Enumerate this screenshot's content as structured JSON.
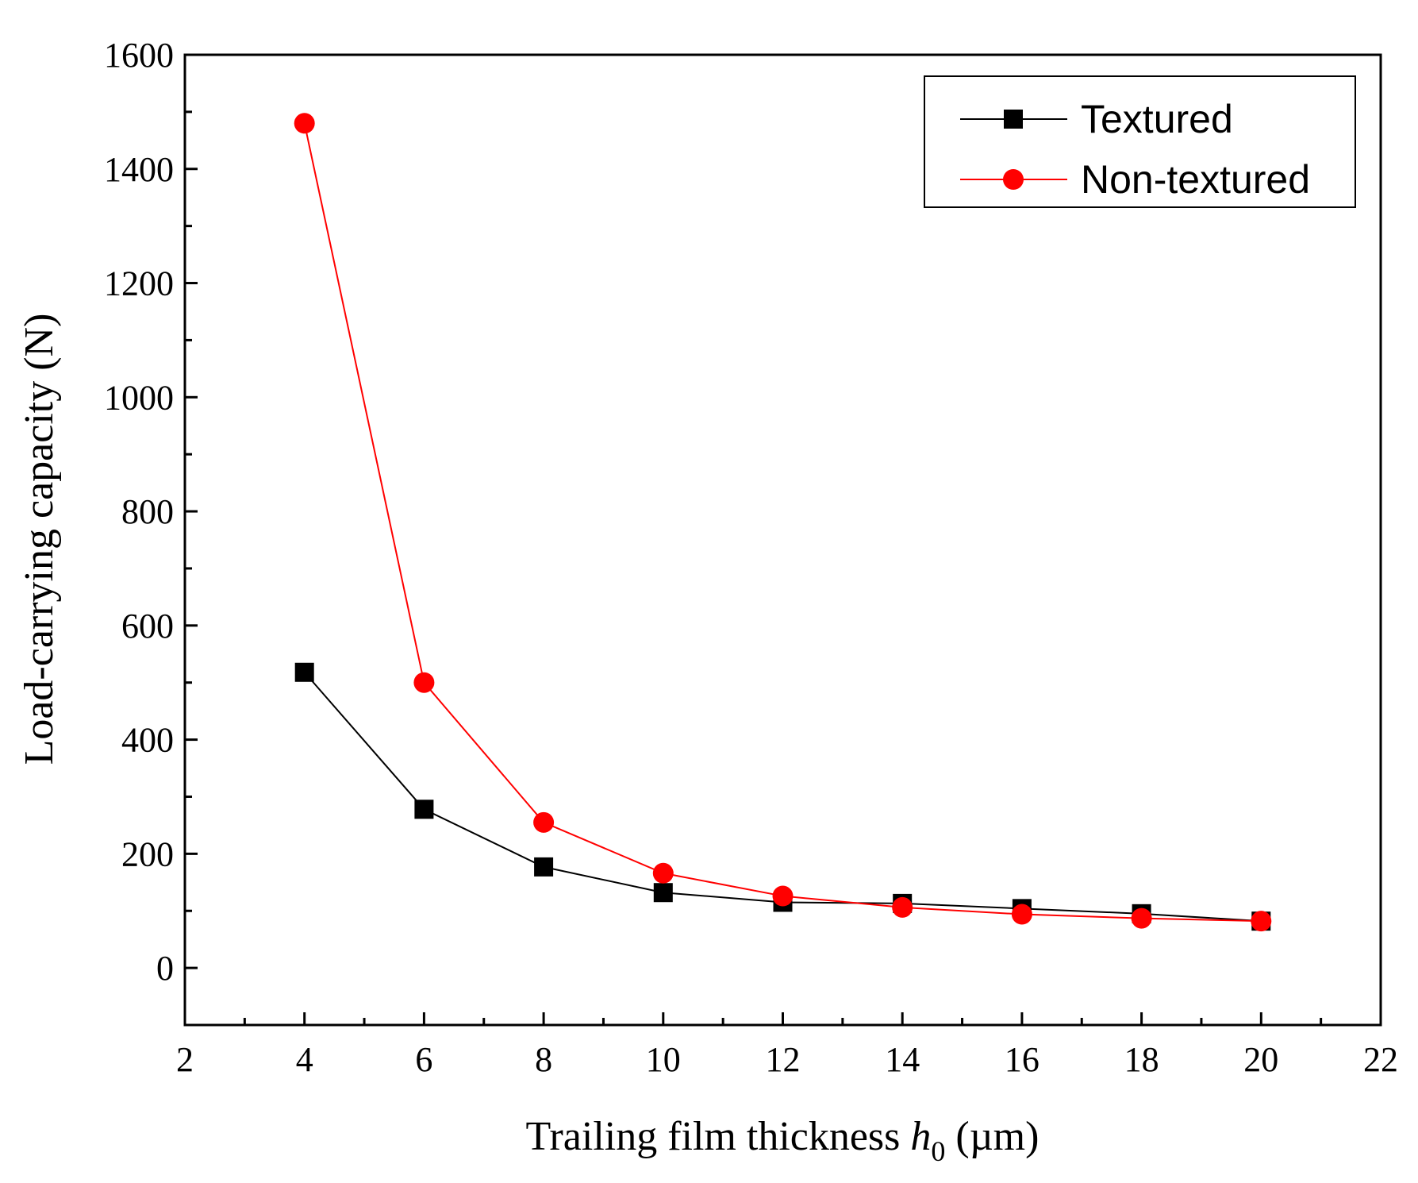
{
  "chart_data": {
    "type": "line",
    "title": "",
    "xlabel": {
      "prefix": "Trailing film thickness ",
      "var": "h",
      "sub": "0",
      "suffix": " (µm)"
    },
    "ylabel": "Load-carrying capacity (N)",
    "xlim": [
      2,
      22
    ],
    "ylim": [
      -100,
      1600
    ],
    "xticks": [
      2,
      4,
      6,
      8,
      10,
      12,
      14,
      16,
      18,
      20,
      22
    ],
    "yticks": [
      0,
      200,
      400,
      600,
      800,
      1000,
      1200,
      1400,
      1600
    ],
    "x": [
      4,
      6,
      8,
      10,
      12,
      14,
      16,
      18,
      20
    ],
    "series": [
      {
        "name": "Textured",
        "color": "#000000",
        "marker": "square",
        "values": [
          518,
          278,
          177,
          132,
          115,
          113,
          104,
          95,
          82
        ]
      },
      {
        "name": "Non-textured",
        "color": "#ff0000",
        "marker": "circle",
        "values": [
          1480,
          500,
          255,
          166,
          126,
          106,
          94,
          87,
          82
        ]
      }
    ],
    "legend": {
      "position": "top-right"
    },
    "grid": false
  }
}
